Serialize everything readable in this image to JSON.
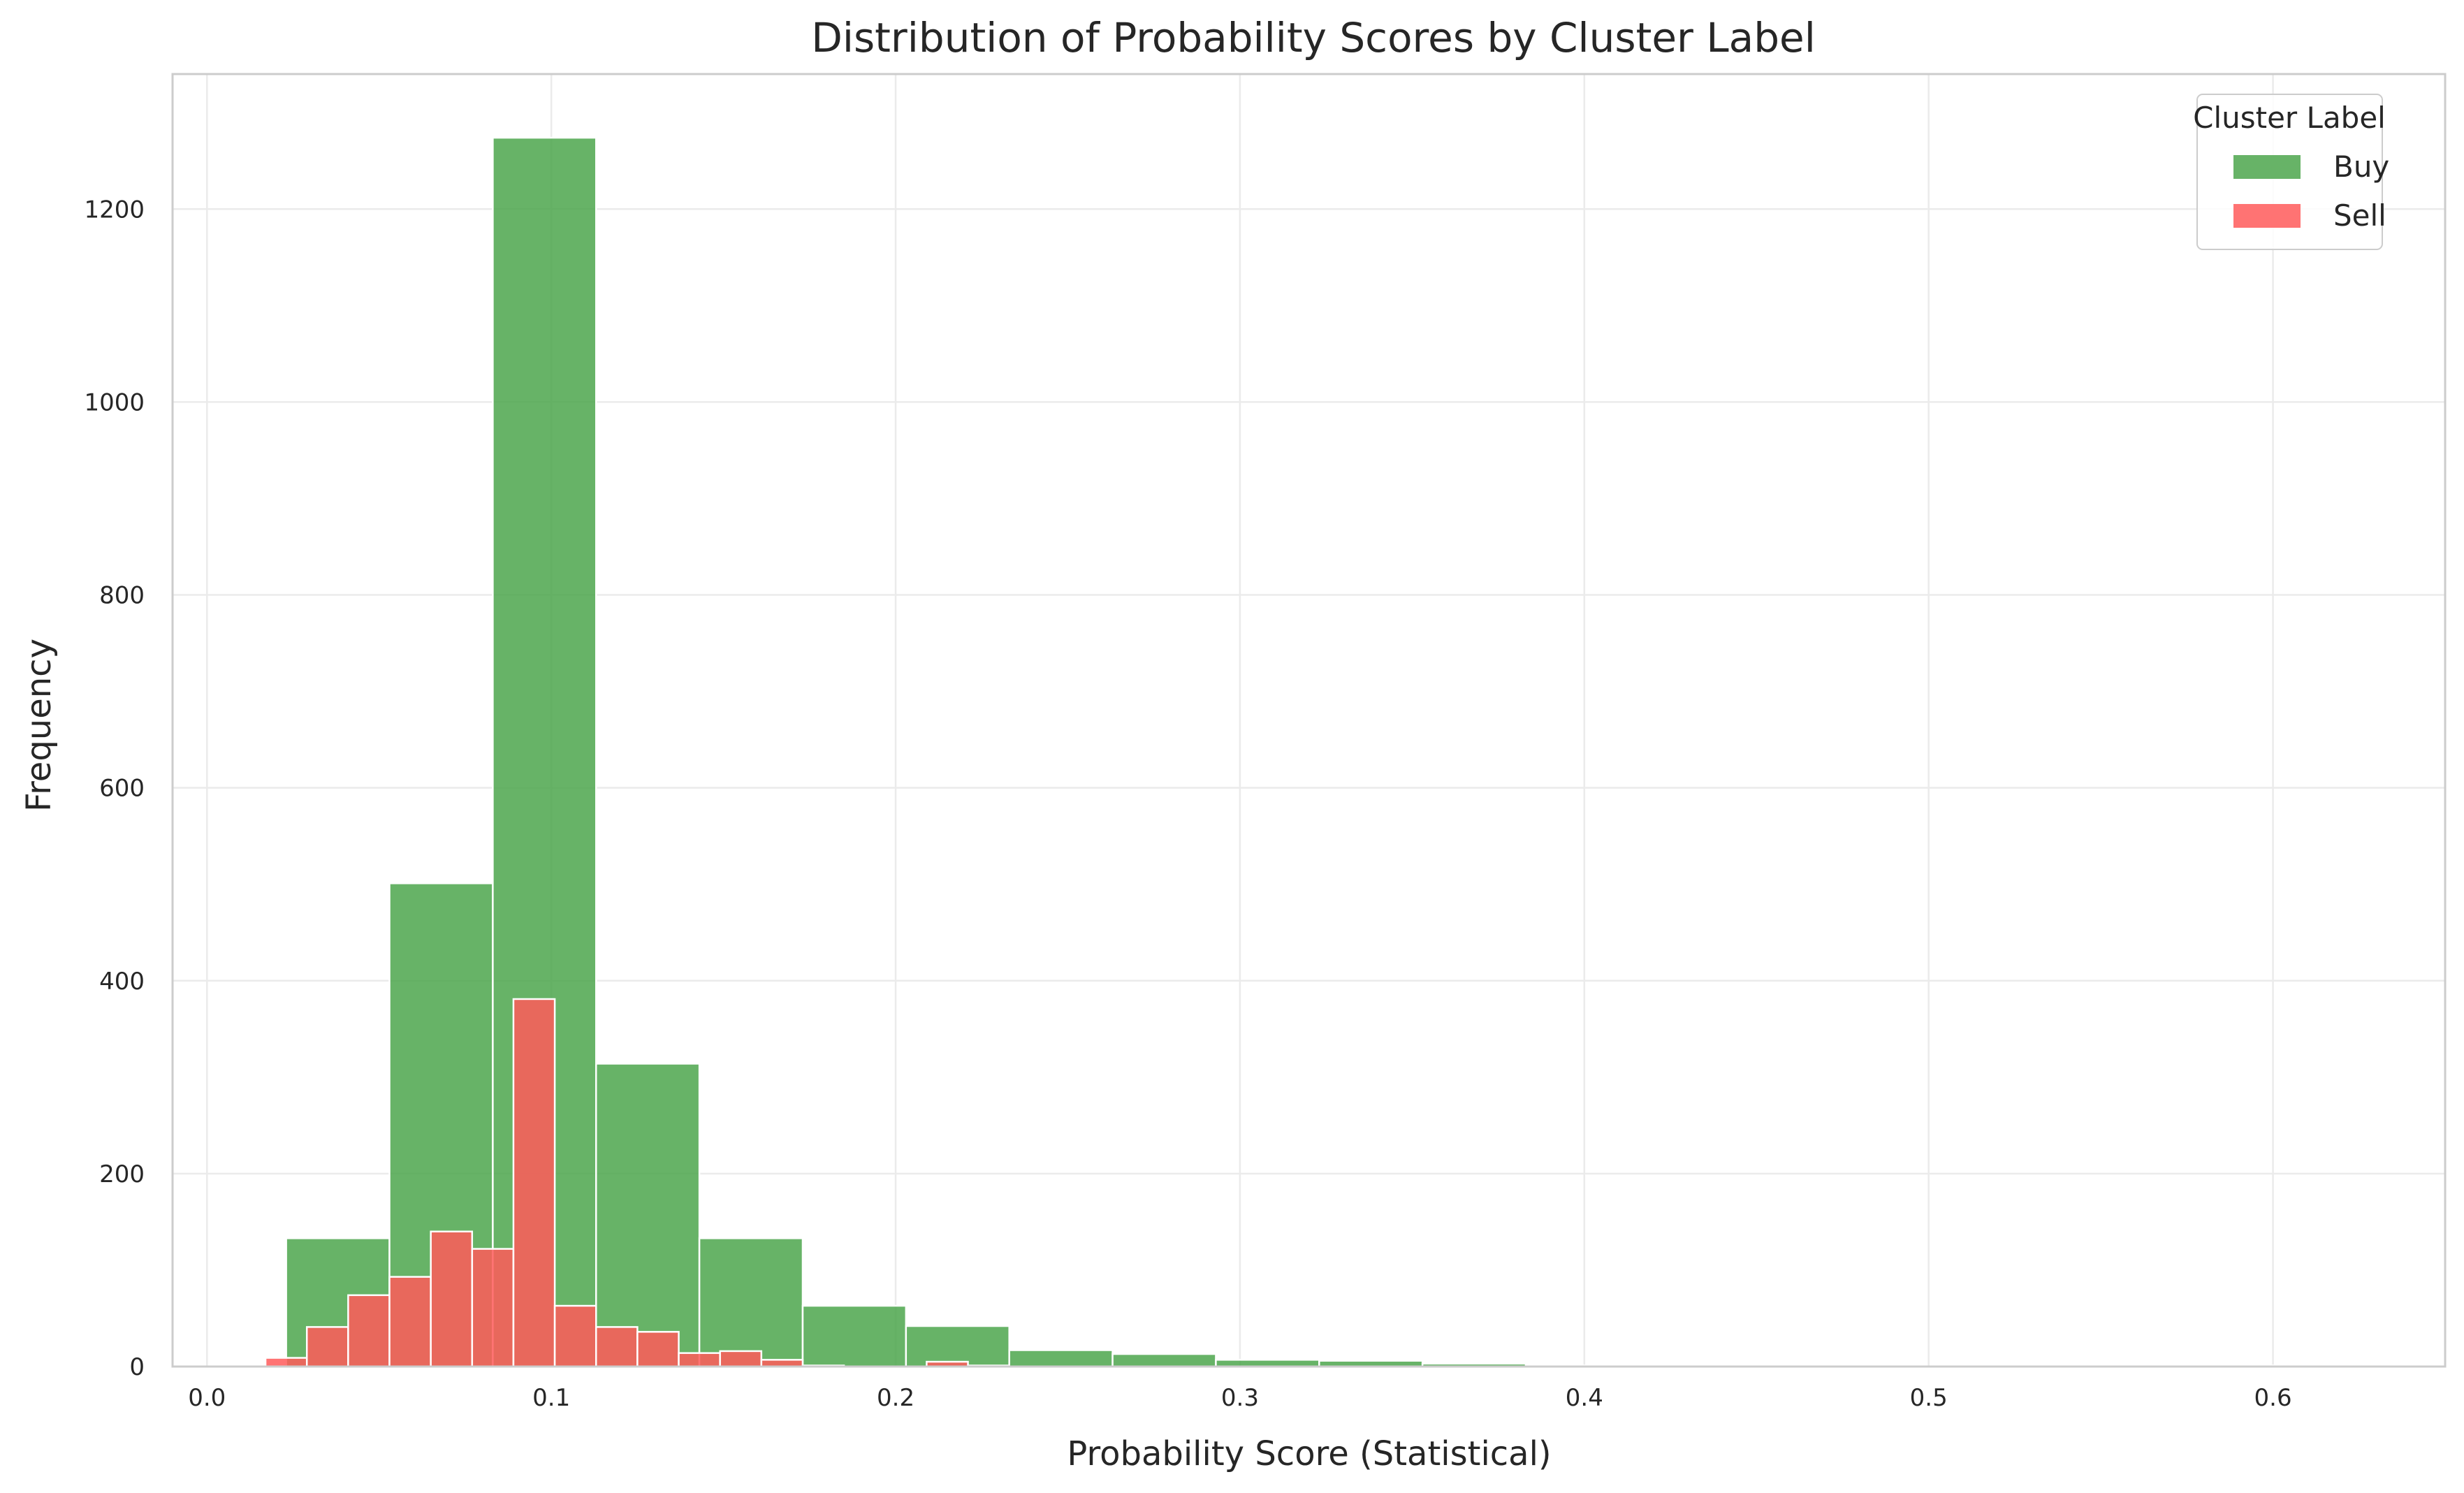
{
  "chart_data": {
    "type": "bar",
    "title": "Distribution of Probability Scores by Cluster Label",
    "xlabel": "Probability Score (Statistical)",
    "ylabel": "Frequency",
    "xlim": [
      -0.01,
      0.65
    ],
    "ylim": [
      0,
      1340
    ],
    "xticks": [
      0.0,
      0.1,
      0.2,
      0.3,
      0.4,
      0.5,
      0.6
    ],
    "xtick_labels": [
      "0.0",
      "0.1",
      "0.2",
      "0.3",
      "0.4",
      "0.5",
      "0.6"
    ],
    "yticks": [
      0,
      200,
      400,
      600,
      800,
      1000,
      1200
    ],
    "ytick_labels": [
      "0",
      "200",
      "400",
      "600",
      "800",
      "1000",
      "1200"
    ],
    "grid": true,
    "legend": {
      "title": "Cluster Label",
      "placement": "top-right",
      "entries": [
        {
          "name": "Buy",
          "color": "#4ca64c"
        },
        {
          "name": "Sell",
          "color": "#ff5a5a"
        }
      ]
    },
    "series": [
      {
        "name": "Buy",
        "color": "#4ca64c",
        "bins": [
          {
            "x0": 0.023,
            "x1": 0.053,
            "count": 133
          },
          {
            "x0": 0.053,
            "x1": 0.083,
            "count": 501
          },
          {
            "x0": 0.083,
            "x1": 0.113,
            "count": 1274
          },
          {
            "x0": 0.113,
            "x1": 0.143,
            "count": 314
          },
          {
            "x0": 0.143,
            "x1": 0.173,
            "count": 133
          },
          {
            "x0": 0.173,
            "x1": 0.203,
            "count": 63
          },
          {
            "x0": 0.203,
            "x1": 0.233,
            "count": 42
          },
          {
            "x0": 0.233,
            "x1": 0.263,
            "count": 17
          },
          {
            "x0": 0.263,
            "x1": 0.293,
            "count": 13
          },
          {
            "x0": 0.293,
            "x1": 0.323,
            "count": 7
          },
          {
            "x0": 0.323,
            "x1": 0.353,
            "count": 6
          },
          {
            "x0": 0.353,
            "x1": 0.383,
            "count": 3
          },
          {
            "x0": 0.383,
            "x1": 0.413,
            "count": 1
          },
          {
            "x0": 0.413,
            "x1": 0.443,
            "count": 0
          },
          {
            "x0": 0.443,
            "x1": 0.473,
            "count": 1
          },
          {
            "x0": 0.473,
            "x1": 0.503,
            "count": 0
          },
          {
            "x0": 0.503,
            "x1": 0.533,
            "count": 0
          },
          {
            "x0": 0.533,
            "x1": 0.563,
            "count": 0
          },
          {
            "x0": 0.563,
            "x1": 0.593,
            "count": 1
          },
          {
            "x0": 0.593,
            "x1": 0.623,
            "count": 1
          }
        ]
      },
      {
        "name": "Sell",
        "color": "#ff5a5a",
        "bins": [
          {
            "x0": 0.017,
            "x1": 0.029,
            "count": 9
          },
          {
            "x0": 0.029,
            "x1": 0.041,
            "count": 41
          },
          {
            "x0": 0.041,
            "x1": 0.053,
            "count": 74
          },
          {
            "x0": 0.053,
            "x1": 0.065,
            "count": 93
          },
          {
            "x0": 0.065,
            "x1": 0.077,
            "count": 140
          },
          {
            "x0": 0.077,
            "x1": 0.089,
            "count": 122
          },
          {
            "x0": 0.089,
            "x1": 0.101,
            "count": 381
          },
          {
            "x0": 0.101,
            "x1": 0.113,
            "count": 63
          },
          {
            "x0": 0.113,
            "x1": 0.125,
            "count": 41
          },
          {
            "x0": 0.125,
            "x1": 0.137,
            "count": 36
          },
          {
            "x0": 0.137,
            "x1": 0.149,
            "count": 14
          },
          {
            "x0": 0.149,
            "x1": 0.161,
            "count": 16
          },
          {
            "x0": 0.161,
            "x1": 0.173,
            "count": 7
          },
          {
            "x0": 0.173,
            "x1": 0.185,
            "count": 1
          },
          {
            "x0": 0.185,
            "x1": 0.197,
            "count": 0
          },
          {
            "x0": 0.197,
            "x1": 0.209,
            "count": 0
          },
          {
            "x0": 0.209,
            "x1": 0.221,
            "count": 5
          },
          {
            "x0": 0.221,
            "x1": 0.233,
            "count": 1
          }
        ]
      }
    ]
  }
}
